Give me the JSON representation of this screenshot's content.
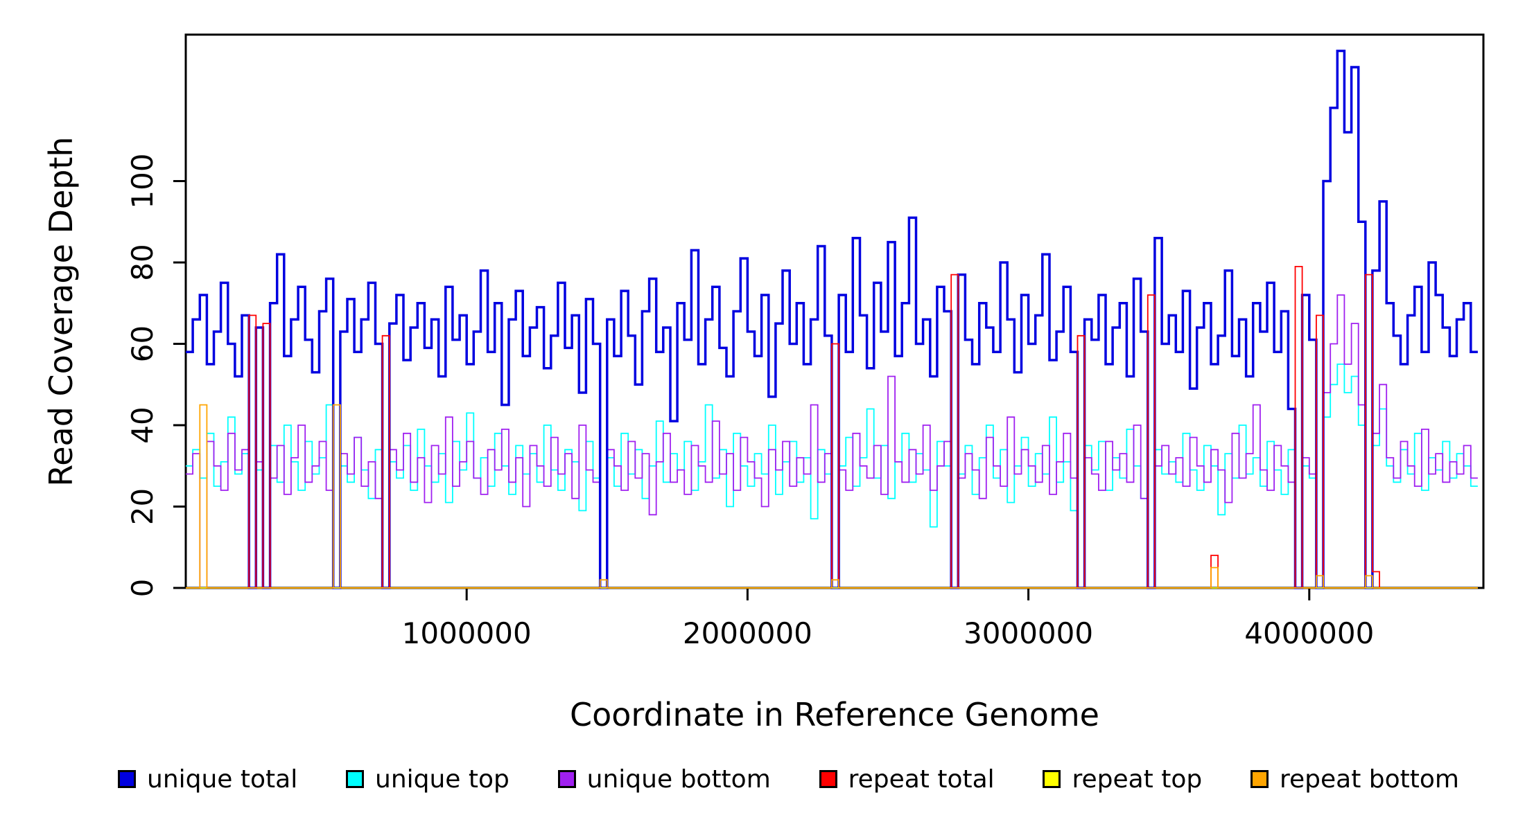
{
  "chart_data": {
    "type": "line",
    "style": "step",
    "title": "",
    "xlabel": "Coordinate in Reference Genome",
    "ylabel": "Read Coverage Depth",
    "xlim": [
      0,
      4620000
    ],
    "ylim": [
      0,
      136
    ],
    "x_ticks": [
      1000000,
      2000000,
      3000000,
      4000000
    ],
    "x_tick_labels": [
      "1000000",
      "2000000",
      "3000000",
      "4000000"
    ],
    "y_ticks": [
      0,
      20,
      40,
      60,
      80,
      100
    ],
    "y_tick_labels": [
      "0",
      "20",
      "40",
      "60",
      "80",
      "100"
    ],
    "bin_size": 25000,
    "grid": false,
    "legend_position": "bottom",
    "series": [
      {
        "name": "unique total",
        "color": "#0000E0",
        "width": 3.5,
        "values": [
          58,
          66,
          72,
          55,
          63,
          75,
          60,
          52,
          67,
          0,
          64,
          0,
          70,
          82,
          57,
          66,
          74,
          61,
          53,
          68,
          76,
          0,
          63,
          71,
          58,
          66,
          75,
          60,
          0,
          65,
          72,
          56,
          64,
          70,
          59,
          66,
          52,
          74,
          61,
          67,
          55,
          63,
          78,
          58,
          70,
          45,
          66,
          73,
          57,
          64,
          69,
          54,
          62,
          75,
          59,
          67,
          48,
          71,
          60,
          0,
          66,
          57,
          73,
          62,
          50,
          68,
          76,
          58,
          64,
          41,
          70,
          61,
          83,
          55,
          66,
          74,
          59,
          52,
          68,
          81,
          63,
          57,
          72,
          47,
          65,
          78,
          60,
          70,
          55,
          66,
          84,
          62,
          0,
          72,
          58,
          86,
          67,
          54,
          75,
          63,
          85,
          57,
          70,
          91,
          60,
          66,
          52,
          74,
          68,
          0,
          77,
          61,
          55,
          70,
          64,
          58,
          80,
          66,
          53,
          72,
          60,
          67,
          82,
          56,
          63,
          74,
          58,
          0,
          66,
          61,
          72,
          55,
          64,
          70,
          52,
          76,
          63,
          0,
          86,
          60,
          67,
          58,
          73,
          49,
          64,
          70,
          55,
          62,
          78,
          57,
          66,
          52,
          70,
          63,
          75,
          58,
          68,
          44,
          0,
          72,
          61,
          0,
          100,
          118,
          132,
          112,
          128,
          90,
          0,
          78,
          95,
          70,
          62,
          55,
          67,
          74,
          58,
          80,
          72,
          64,
          57,
          66,
          70,
          58
        ]
      },
      {
        "name": "unique top",
        "color": "#00FFFF",
        "width": 1.8,
        "values": [
          30,
          34,
          27,
          38,
          25,
          31,
          42,
          28,
          33,
          0,
          29,
          0,
          35,
          26,
          40,
          31,
          24,
          36,
          28,
          32,
          45,
          0,
          30,
          26,
          37,
          29,
          22,
          34,
          0,
          31,
          27,
          35,
          24,
          39,
          30,
          26,
          33,
          21,
          36,
          29,
          43,
          27,
          32,
          25,
          38,
          30,
          23,
          35,
          28,
          33,
          26,
          40,
          29,
          24,
          34,
          31,
          19,
          36,
          27,
          0,
          32,
          25,
          38,
          28,
          34,
          22,
          30,
          41,
          26,
          33,
          29,
          36,
          24,
          31,
          45,
          27,
          34,
          20,
          38,
          30,
          25,
          33,
          28,
          40,
          23,
          31,
          36,
          26,
          32,
          17,
          34,
          28,
          0,
          30,
          37,
          25,
          32,
          44,
          27,
          35,
          22,
          31,
          38,
          26,
          33,
          29,
          15,
          36,
          30,
          0,
          28,
          35,
          23,
          32,
          40,
          27,
          34,
          21,
          30,
          37,
          25,
          33,
          28,
          42,
          26,
          31,
          19,
          0,
          35,
          29,
          36,
          24,
          32,
          27,
          39,
          30,
          22,
          0,
          34,
          28,
          31,
          26,
          38,
          29,
          24,
          35,
          30,
          18,
          33,
          27,
          40,
          28,
          32,
          25,
          36,
          29,
          23,
          34,
          0,
          30,
          27,
          0,
          42,
          50,
          55,
          48,
          52,
          40,
          0,
          35,
          44,
          30,
          26,
          34,
          28,
          38,
          24,
          32,
          29,
          36,
          27,
          33,
          30,
          25
        ]
      },
      {
        "name": "unique bottom",
        "color": "#A020F0",
        "width": 1.8,
        "values": [
          28,
          33,
          0,
          36,
          30,
          24,
          38,
          29,
          34,
          0,
          31,
          0,
          27,
          35,
          23,
          32,
          40,
          26,
          30,
          36,
          24,
          0,
          33,
          28,
          37,
          25,
          31,
          22,
          0,
          34,
          29,
          38,
          26,
          32,
          21,
          35,
          28,
          42,
          25,
          31,
          36,
          27,
          23,
          34,
          29,
          39,
          26,
          32,
          20,
          35,
          30,
          25,
          37,
          28,
          33,
          22,
          40,
          29,
          26,
          0,
          34,
          30,
          24,
          36,
          27,
          33,
          18,
          31,
          38,
          26,
          29,
          23,
          35,
          30,
          26,
          41,
          28,
          33,
          24,
          37,
          31,
          27,
          20,
          34,
          29,
          36,
          25,
          32,
          28,
          45,
          26,
          33,
          0,
          29,
          24,
          38,
          30,
          27,
          35,
          23,
          52,
          31,
          26,
          34,
          28,
          40,
          24,
          30,
          36,
          0,
          27,
          33,
          29,
          22,
          37,
          30,
          25,
          42,
          28,
          34,
          30,
          26,
          35,
          23,
          31,
          38,
          27,
          0,
          32,
          28,
          24,
          36,
          29,
          33,
          26,
          40,
          22,
          0,
          30,
          35,
          28,
          32,
          25,
          37,
          30,
          26,
          34,
          29,
          21,
          38,
          27,
          33,
          45,
          29,
          24,
          35,
          30,
          26,
          0,
          32,
          28,
          0,
          48,
          60,
          72,
          55,
          65,
          45,
          0,
          38,
          50,
          32,
          27,
          36,
          30,
          25,
          39,
          28,
          33,
          26,
          31,
          28,
          35,
          27
        ]
      },
      {
        "name": "repeat total",
        "color": "#FF0000",
        "width": 1.8,
        "spikes": [
          [
            9,
            67
          ],
          [
            11,
            65
          ],
          [
            28,
            62
          ],
          [
            92,
            60
          ],
          [
            109,
            77
          ],
          [
            127,
            62
          ],
          [
            137,
            72
          ],
          [
            146,
            8
          ],
          [
            158,
            79
          ],
          [
            161,
            67
          ],
          [
            168,
            77
          ],
          [
            169,
            4
          ]
        ]
      },
      {
        "name": "repeat top",
        "color": "#FFFF00",
        "width": 1.8,
        "spikes": []
      },
      {
        "name": "repeat bottom",
        "color": "#FFA500",
        "width": 1.8,
        "spikes": [
          [
            2,
            45
          ],
          [
            21,
            45
          ],
          [
            59,
            2
          ],
          [
            92,
            2
          ],
          [
            146,
            5
          ],
          [
            161,
            3
          ],
          [
            168,
            3
          ]
        ]
      }
    ],
    "legend": [
      {
        "label": "unique total",
        "color": "#0000E0"
      },
      {
        "label": "unique top",
        "color": "#00FFFF"
      },
      {
        "label": "unique bottom",
        "color": "#A020F0"
      },
      {
        "label": "repeat total",
        "color": "#FF0000"
      },
      {
        "label": "repeat top",
        "color": "#FFFF00"
      },
      {
        "label": "repeat bottom",
        "color": "#FFA500"
      }
    ]
  }
}
